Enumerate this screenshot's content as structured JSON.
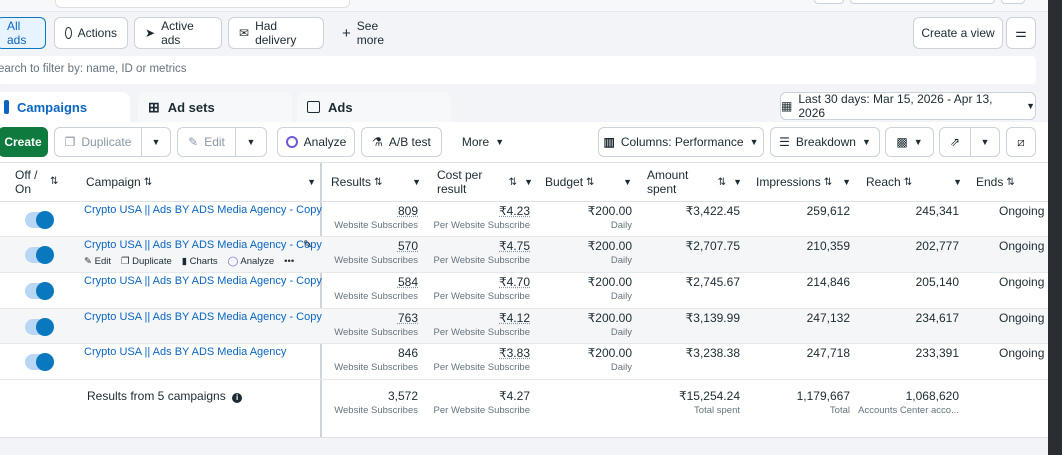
{
  "filter_bar": {
    "all_ads": "All ads",
    "actions": "Actions",
    "active_ads": "Active ads",
    "had_delivery": "Had delivery",
    "see_more": "See more",
    "create_view": "Create a view"
  },
  "search": {
    "placeholder": "earch to filter by: name, ID or metrics"
  },
  "tabs": {
    "campaigns": "Campaigns",
    "ad_sets": "Ad sets",
    "ads": "Ads"
  },
  "date_range": "Last 30 days: Mar 15, 2026 - Apr 13, 2026",
  "toolbar": {
    "create": "Create",
    "duplicate": "Duplicate",
    "edit": "Edit",
    "analyze": "Analyze",
    "ab_test": "A/B test",
    "more": "More",
    "columns": "Columns: Performance",
    "breakdown": "Breakdown"
  },
  "headers": {
    "off_on_1": "Off /",
    "off_on_2": "On",
    "campaign": "Campaign",
    "results": "Results",
    "cost_1": "Cost per",
    "cost_2": "result",
    "budget": "Budget",
    "amount_1": "Amount",
    "amount_2": "spent",
    "impressions": "Impressions",
    "reach": "Reach",
    "ends": "Ends"
  },
  "row_actions": {
    "edit": "Edit",
    "duplicate": "Duplicate",
    "charts": "Charts",
    "analyze": "Analyze",
    "more": "•••"
  },
  "rows": [
    {
      "name": "Crypto USA || Ads BY ADS Media Agency - Copy",
      "results": "809",
      "results_sub": "Website Subscribes",
      "cost": "₹4.23",
      "cost_sub": "Per Website Subscribe",
      "budget": "₹200.00",
      "budget_sub": "Daily",
      "spent": "₹3,422.45",
      "impressions": "259,612",
      "reach": "245,341",
      "ends": "Ongoing"
    },
    {
      "name": "Crypto USA || Ads BY ADS Media Agency - Copy",
      "results": "570",
      "results_sub": "Website Subscribes",
      "cost": "₹4.75",
      "cost_sub": "Per Website Subscribe",
      "budget": "₹200.00",
      "budget_sub": "Daily",
      "spent": "₹2,707.75",
      "impressions": "210,359",
      "reach": "202,777",
      "ends": "Ongoing"
    },
    {
      "name": "Crypto USA || Ads BY ADS Media Agency - Copy",
      "results": "584",
      "results_sub": "Website Subscribes",
      "cost": "₹4.70",
      "cost_sub": "Per Website Subscribe",
      "budget": "₹200.00",
      "budget_sub": "Daily",
      "spent": "₹2,745.67",
      "impressions": "214,846",
      "reach": "205,140",
      "ends": "Ongoing"
    },
    {
      "name": "Crypto USA || Ads BY ADS Media Agency - Copy",
      "results": "763",
      "results_sub": "Website Subscribes",
      "cost": "₹4.12",
      "cost_sub": "Per Website Subscribe",
      "budget": "₹200.00",
      "budget_sub": "Daily",
      "spent": "₹3,139.99",
      "impressions": "247,132",
      "reach": "234,617",
      "ends": "Ongoing"
    },
    {
      "name": "Crypto USA || Ads BY ADS Media Agency",
      "results": "846",
      "results_sub": "Website Subscribes",
      "cost": "₹3.83",
      "cost_sub": "Per Website Subscribe",
      "budget": "₹200.00",
      "budget_sub": "Daily",
      "spent": "₹3,238.38",
      "impressions": "247,718",
      "reach": "233,391",
      "ends": "Ongoing"
    }
  ],
  "totals": {
    "label": "Results from 5 campaigns",
    "results": "3,572",
    "results_sub": "Website Subscribes",
    "cost": "₹4.27",
    "cost_sub": "Per Website Subscribe",
    "spent": "₹15,254.24",
    "spent_sub": "Total spent",
    "impressions": "1,179,667",
    "impressions_sub": "Total",
    "reach": "1,068,620",
    "reach_sub": "Accounts Center acco..."
  },
  "colors": {
    "accent": "#0a66c2",
    "create_green": "#0f7a3d"
  }
}
